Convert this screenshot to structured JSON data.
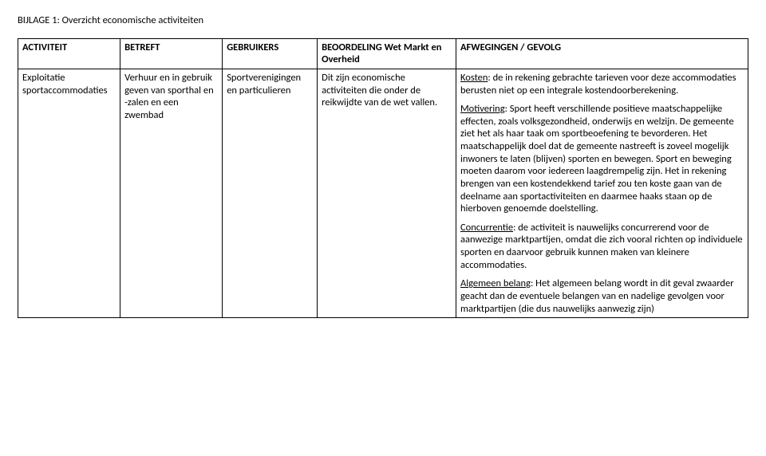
{
  "title": "BIJLAGE 1: Overzicht economische activiteiten",
  "headers": {
    "activiteit": "ACTIVITEIT",
    "betreft": "BETREFT",
    "gebruikers": "GEBRUIKERS",
    "beoordeling": "BEOORDELING Wet Markt en Overheid",
    "afwegingen": "AFWEGINGEN / GEVOLG"
  },
  "row": {
    "activiteit": "Exploitatie sportaccommodaties",
    "betreft": "Verhuur en in gebruik geven van sporthal en -zalen en een zwembad",
    "gebruikers": "Sportverenigingen en particulieren",
    "beoordeling": "Dit zijn economische activiteiten die onder de reikwijdte van de wet vallen.",
    "afw": {
      "kosten_label": "Kosten",
      "kosten_text": ": de in rekening gebrachte tarieven voor deze accommodaties berusten niet op een integrale kostendoorberekening.",
      "motivering_label": "Motivering",
      "motivering_text": ": Sport heeft verschillende positieve maatschappelijke effecten, zoals volksgezondheid, onderwijs en welzijn. De gemeente ziet het als haar taak om sportbeoefening te bevorderen. Het maatschappelijk doel dat de gemeente nastreeft is zoveel mogelijk inwoners te laten (blijven) sporten en bewegen. Sport en beweging moeten daarom voor iedereen laagdrempelig zijn. Het in rekening brengen van een kostendekkend tarief zou ten koste gaan van de deelname aan sportactiviteiten en daarmee haaks staan op de hierboven genoemde doelstelling.",
      "concurrentie_label": "Concurrentie",
      "concurrentie_text": ": de activiteit is nauwelijks concurrerend voor de aanwezige marktpartijen, omdat die zich vooral richten op individuele sporten en daarvoor gebruik kunnen maken van kleinere accommodaties.",
      "algemeen_label": "Algemeen belang",
      "algemeen_text": ": Het algemeen belang wordt in dit geval zwaarder geacht dan de eventuele belangen van en nadelige gevolgen voor marktpartijen (die dus nauwelijks aanwezig zijn)"
    }
  }
}
